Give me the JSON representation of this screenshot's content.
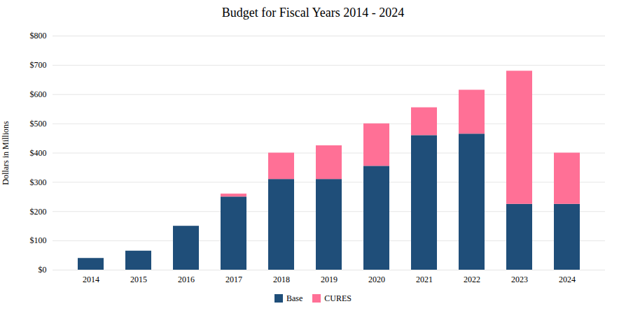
{
  "chart_data": {
    "type": "bar",
    "title": "Budget for Fiscal Years 2014 - 2024",
    "ylabel": "Dollars in Millions",
    "categories": [
      "2014",
      "2015",
      "2016",
      "2017",
      "2018",
      "2019",
      "2020",
      "2021",
      "2022",
      "2023",
      "2024"
    ],
    "series": [
      {
        "name": "Base",
        "color": "#1F4E79",
        "values": [
          40,
          65,
          150,
          250,
          310,
          310,
          355,
          460,
          465,
          225,
          225
        ]
      },
      {
        "name": "CURES",
        "color": "#FF7096",
        "values": [
          0,
          0,
          0,
          10,
          90,
          115,
          145,
          95,
          150,
          455,
          175
        ]
      }
    ],
    "stacked": true,
    "ylim": [
      0,
      800
    ],
    "yticks": [
      {
        "value": 0,
        "label": "$0"
      },
      {
        "value": 100,
        "label": "$100"
      },
      {
        "value": 200,
        "label": "$200"
      },
      {
        "value": 300,
        "label": "$300"
      },
      {
        "value": 400,
        "label": "$400"
      },
      {
        "value": 500,
        "label": "$500"
      },
      {
        "value": 600,
        "label": "$600"
      },
      {
        "value": 700,
        "label": "$700"
      },
      {
        "value": 800,
        "label": "$800"
      }
    ],
    "grid": true,
    "legend": "bottom"
  }
}
